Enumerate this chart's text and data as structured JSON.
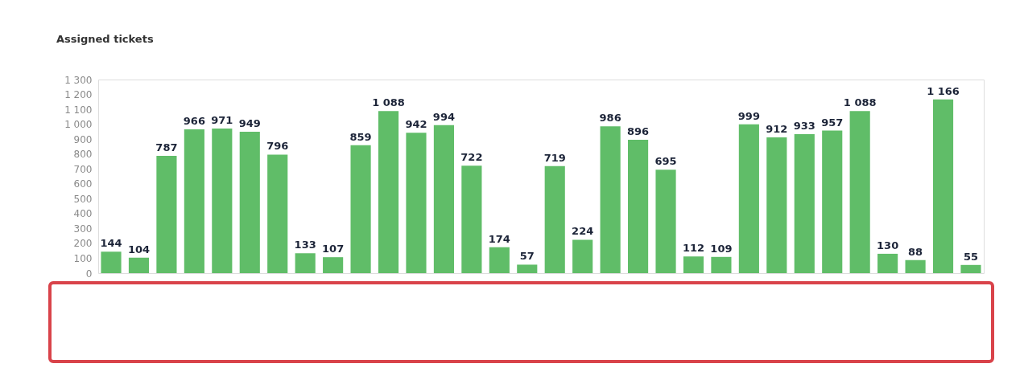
{
  "chart_data": {
    "type": "bar",
    "title": "Assigned tickets",
    "categories": [
      null,
      null,
      null,
      null,
      null,
      null,
      null,
      null,
      null,
      null,
      null,
      null,
      null,
      null,
      null,
      null,
      null,
      null,
      null,
      null,
      null,
      null,
      null,
      null,
      null,
      null,
      null,
      null,
      null,
      null,
      null,
      null
    ],
    "values": [
      144,
      104,
      787,
      966,
      971,
      949,
      796,
      133,
      107,
      859,
      1088,
      942,
      994,
      722,
      174,
      57,
      719,
      224,
      986,
      896,
      695,
      112,
      109,
      999,
      912,
      933,
      957,
      1088,
      130,
      88,
      1166,
      55
    ],
    "value_labels": [
      "144",
      "104",
      "787",
      "966",
      "971",
      "949",
      "796",
      "133",
      "107",
      "859",
      "1 088",
      "942",
      "994",
      "722",
      "174",
      "57",
      "719",
      "224",
      "986",
      "896",
      "695",
      "112",
      "109",
      "999",
      "912",
      "933",
      "957",
      "1 088",
      "130",
      "88",
      "1 166",
      "55"
    ],
    "color": "#60bd68",
    "ylim": [
      0,
      1300
    ],
    "yticks": [
      0,
      100,
      200,
      300,
      400,
      500,
      600,
      700,
      800,
      900,
      {
        "value": 1000,
        "label": "1 000"
      },
      {
        "value": 1100,
        "label": "1 100"
      },
      {
        "value": 1200,
        "label": "1 200"
      },
      {
        "value": 1300,
        "label": "1 300"
      }
    ],
    "tick_labels": "y"
  }
}
